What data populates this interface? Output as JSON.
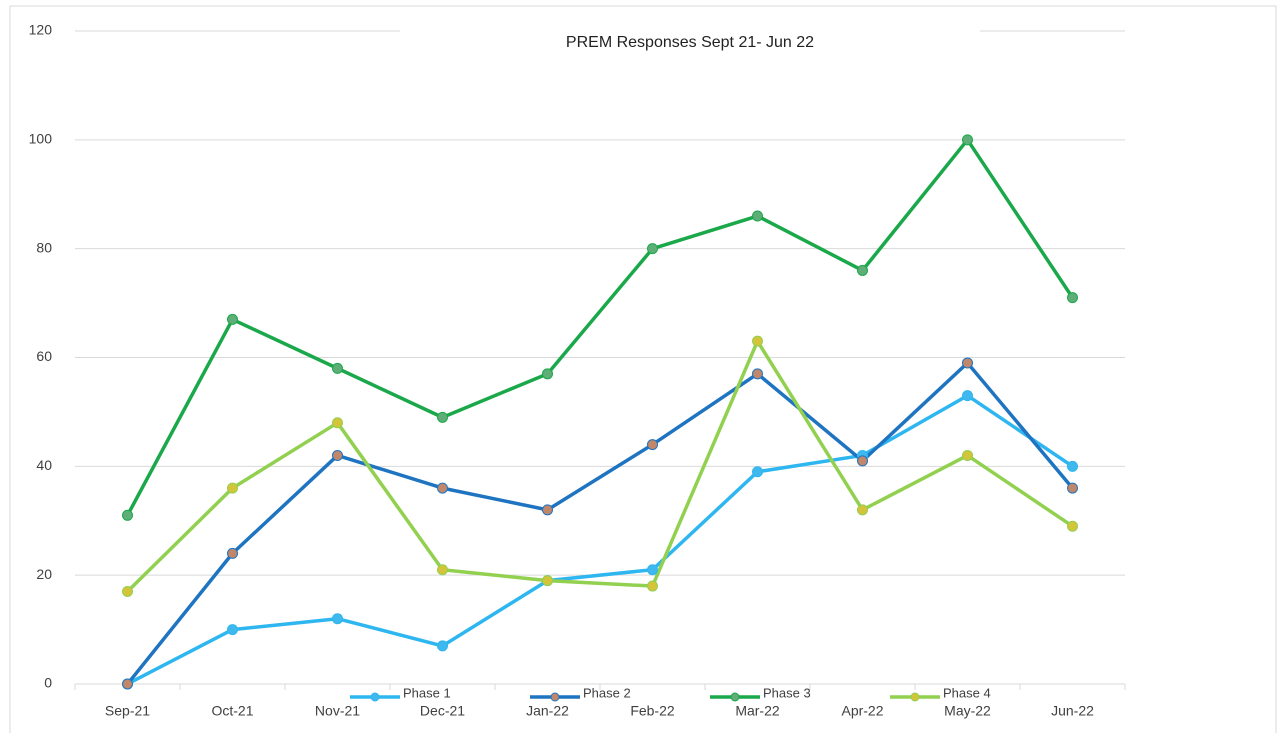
{
  "chart_data": {
    "type": "line",
    "title": "PREM Responses Sept 21- Jun 22",
    "categories": [
      "Sep-21",
      "Oct-21",
      "Nov-21",
      "Dec-21",
      "Jan-22",
      "Feb-22",
      "Mar-22",
      "Apr-22",
      "May-22",
      "Jun-22"
    ],
    "series": [
      {
        "name": "Phase 1",
        "color": "#2eb6f0",
        "marker_color": "#3fb8ee",
        "values": [
          0,
          10,
          12,
          7,
          19,
          21,
          39,
          42,
          53,
          40
        ]
      },
      {
        "name": "Phase 2",
        "color": "#1f74c2",
        "marker_color": "#c0876a",
        "values": [
          0,
          24,
          42,
          36,
          32,
          44,
          57,
          41,
          59,
          36
        ]
      },
      {
        "name": "Phase 3",
        "color": "#1aa84a",
        "marker_color": "#5fae78",
        "values": [
          31,
          67,
          58,
          49,
          57,
          80,
          86,
          76,
          100,
          71
        ]
      },
      {
        "name": "Phase 4",
        "color": "#92d050",
        "marker_color": "#d4c43a",
        "values": [
          17,
          36,
          48,
          21,
          19,
          18,
          63,
          32,
          42,
          29
        ]
      }
    ],
    "ylim": [
      0,
      120
    ],
    "yticks": [
      0,
      20,
      40,
      60,
      80,
      100,
      120
    ],
    "grid": true,
    "legend": "bottom"
  }
}
